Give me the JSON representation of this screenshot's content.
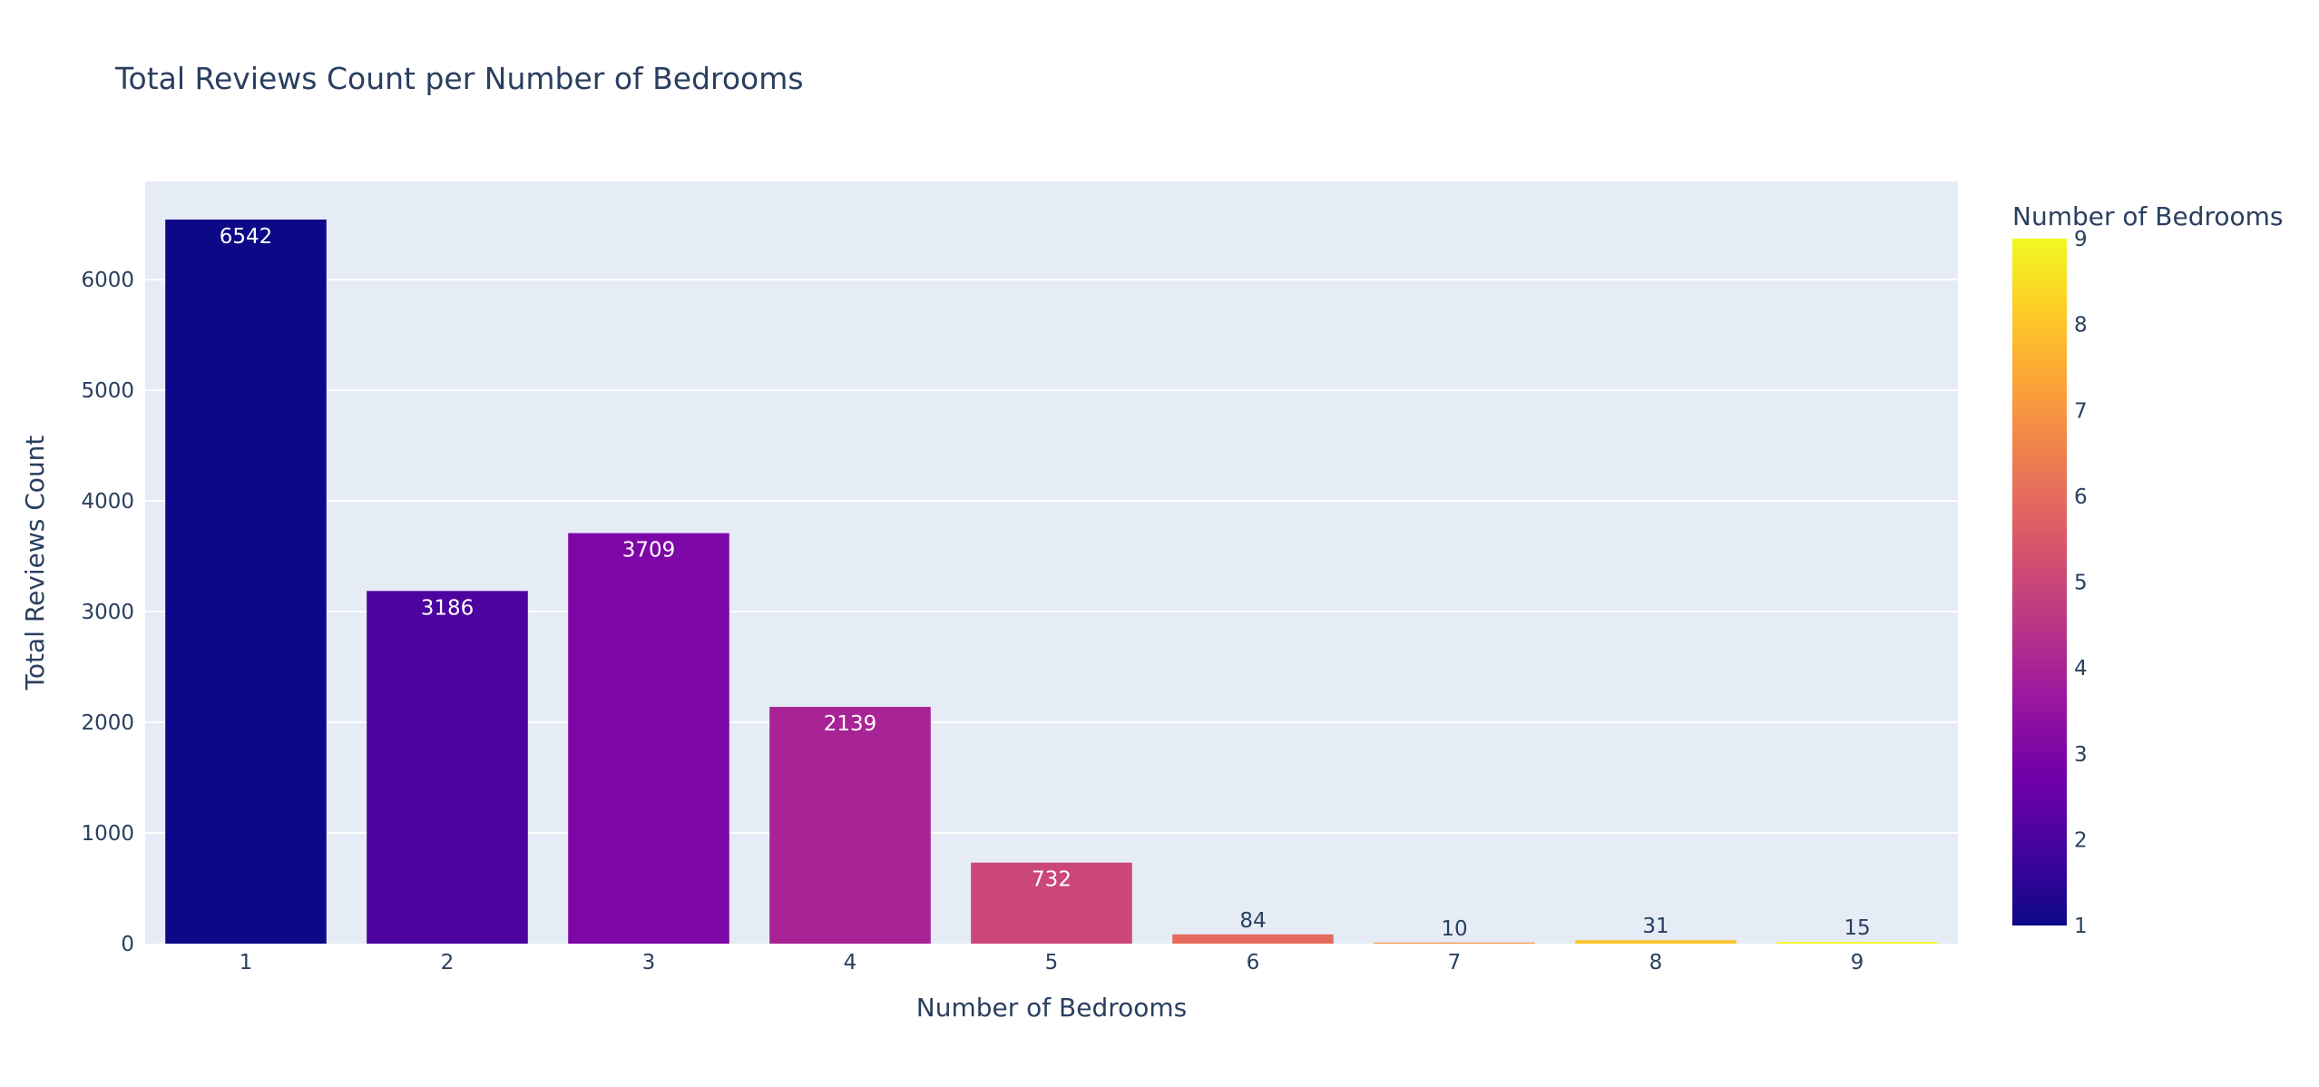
{
  "chart_data": {
    "type": "bar",
    "title": "Total Reviews Count per Number of Bedrooms",
    "xlabel": "Number of Bedrooms",
    "ylabel": "Total Reviews Count",
    "categories": [
      "1",
      "2",
      "3",
      "4",
      "5",
      "6",
      "7",
      "8",
      "9"
    ],
    "values": [
      6542,
      3186,
      3709,
      2139,
      732,
      84,
      10,
      31,
      15
    ],
    "color_values": [
      1,
      2,
      3,
      4,
      5,
      6,
      7,
      8,
      9
    ],
    "ylim": [
      0,
      6886
    ],
    "yticks": [
      0,
      1000,
      2000,
      3000,
      4000,
      5000,
      6000
    ],
    "grid": true,
    "colorbar": {
      "title": "Number of Bedrooms",
      "range": [
        1,
        9
      ],
      "ticks": [
        1,
        2,
        3,
        4,
        5,
        6,
        7,
        8,
        9
      ],
      "colorscale": [
        "#0d0887",
        "#46039f",
        "#7201a8",
        "#9c179e",
        "#bd3786",
        "#d8576b",
        "#ed7953",
        "#fb9f3a",
        "#fdca26",
        "#f0f921"
      ]
    },
    "colors": {
      "plot_background": "#e5ecf6",
      "text": "#2a3f5f",
      "grid": "#ffffff"
    }
  }
}
